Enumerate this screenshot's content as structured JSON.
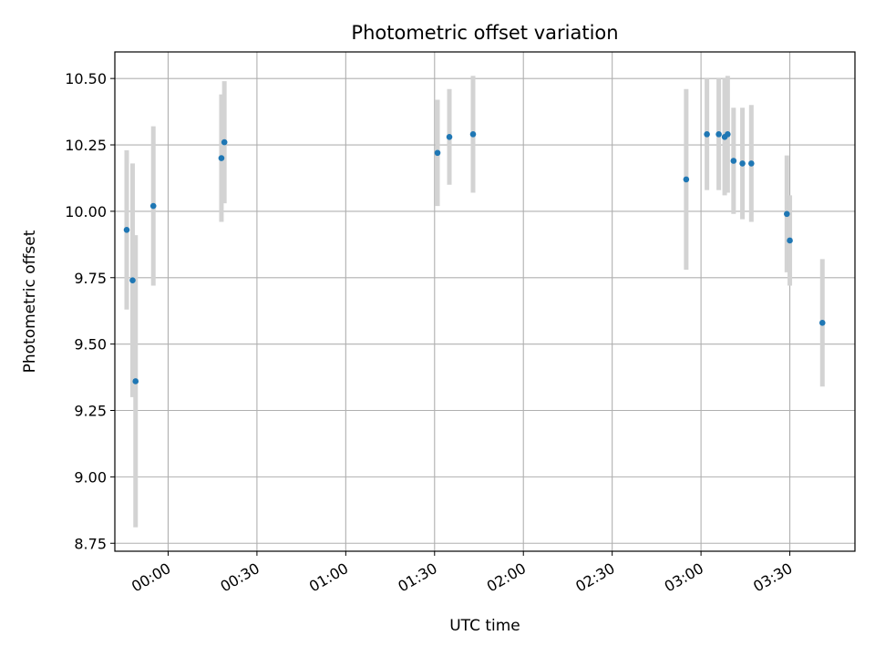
{
  "chart_data": {
    "type": "scatter",
    "title": "Photometric offset variation",
    "xlabel": "UTC time",
    "ylabel": "Photometric offset",
    "grid": true,
    "x_tick_labels": [
      "00:00",
      "00:30",
      "01:00",
      "01:30",
      "02:00",
      "02:30",
      "03:00",
      "03:30"
    ],
    "xlim": [
      "-00:18",
      "03:52"
    ],
    "ylim": [
      8.72,
      10.6
    ],
    "y_ticks": [
      8.75,
      9.0,
      9.25,
      9.5,
      9.75,
      10.0,
      10.25,
      10.5
    ],
    "y_tick_labels": [
      "8.75",
      "9.00",
      "9.25",
      "9.50",
      "9.75",
      "10.00",
      "10.25",
      "10.50"
    ],
    "point_color": "#1f77b4",
    "errorbar_color": "#d3d3d3",
    "series": [
      {
        "points": [
          {
            "x": "-00:14",
            "y": 9.93,
            "err": 0.3
          },
          {
            "x": "-00:12",
            "y": 9.74,
            "err": 0.44
          },
          {
            "x": "-00:11",
            "y": 9.36,
            "err": 0.55
          },
          {
            "x": "-00:05",
            "y": 10.02,
            "err": 0.3
          },
          {
            "x": "00:18",
            "y": 10.2,
            "err": 0.24
          },
          {
            "x": "00:19",
            "y": 10.26,
            "err": 0.23
          },
          {
            "x": "01:31",
            "y": 10.22,
            "err": 0.2
          },
          {
            "x": "01:35",
            "y": 10.28,
            "err": 0.18
          },
          {
            "x": "01:43",
            "y": 10.29,
            "err": 0.22
          },
          {
            "x": "02:55",
            "y": 10.12,
            "err": 0.34
          },
          {
            "x": "03:02",
            "y": 10.29,
            "err": 0.21
          },
          {
            "x": "03:06",
            "y": 10.29,
            "err": 0.21
          },
          {
            "x": "03:08",
            "y": 10.28,
            "err": 0.22
          },
          {
            "x": "03:09",
            "y": 10.29,
            "err": 0.22
          },
          {
            "x": "03:11",
            "y": 10.19,
            "err": 0.2
          },
          {
            "x": "03:14",
            "y": 10.18,
            "err": 0.21
          },
          {
            "x": "03:17",
            "y": 10.18,
            "err": 0.22
          },
          {
            "x": "03:29",
            "y": 9.99,
            "err": 0.22
          },
          {
            "x": "03:30",
            "y": 9.89,
            "err": 0.17
          },
          {
            "x": "03:41",
            "y": 9.58,
            "err": 0.24
          }
        ]
      }
    ]
  }
}
